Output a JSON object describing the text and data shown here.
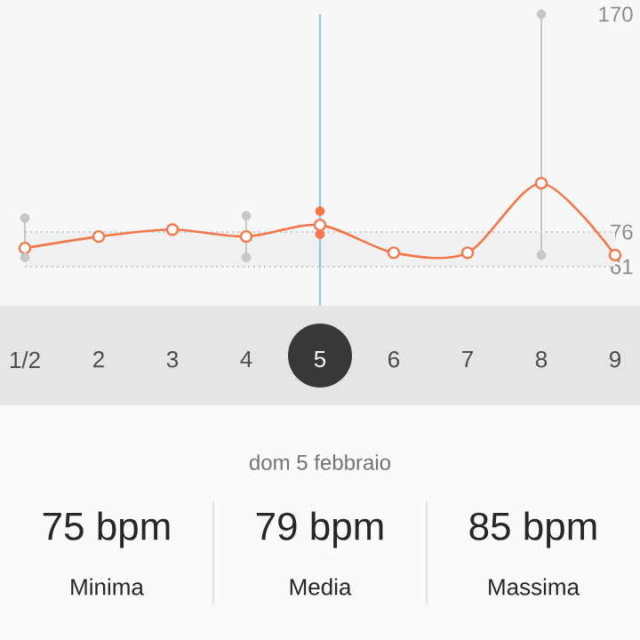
{
  "chart_data": {
    "type": "line",
    "categories": [
      "1/2",
      "2",
      "3",
      "4",
      "5",
      "6",
      "7",
      "8",
      "9"
    ],
    "series": [
      {
        "color": "#f4774a",
        "values": [
          69,
          74,
          77,
          74,
          79,
          67,
          67,
          97,
          66
        ]
      },
      {
        "type": "scatter",
        "color": "#c7c7c7",
        "colors": [
          "#c7c7c7",
          "#c7c7c7",
          "#c7c7c7",
          "#c7c7c7",
          "#f4774a",
          "#c7c7c7",
          "#c7c7c7",
          "#c7c7c7",
          "#c7c7c7"
        ],
        "values": [
          82,
          null,
          null,
          83,
          85,
          null,
          null,
          170,
          null
        ]
      },
      {
        "type": "scatter",
        "color": "#c7c7c7",
        "colors": [
          "#c7c7c7",
          "#c7c7c7",
          "#c7c7c7",
          "#c7c7c7",
          "#f4774a",
          "#c7c7c7",
          "#c7c7c7",
          "#c7c7c7",
          "#c7c7c7"
        ],
        "values": [
          65,
          null,
          null,
          65,
          75,
          null,
          null,
          66,
          null
        ]
      }
    ],
    "ylim": [
      61,
      170
    ],
    "yticks": [
      61,
      76,
      170
    ],
    "marker": "circle",
    "line_style": "solid",
    "grid": false,
    "ref_lines": [
      {
        "axis": "y",
        "value": 76,
        "color": "#c8c8c8",
        "line_style": "dotted"
      },
      {
        "axis": "y",
        "value": 61,
        "color": "#c8c8c8",
        "line_style": "dotted"
      },
      {
        "axis": "x",
        "value": "5",
        "color": "#8ecfd3",
        "line_style": "solid"
      }
    ],
    "bands": [
      {
        "axis": "y",
        "from": 61,
        "to": 76,
        "color": "#f1f1f1"
      }
    ],
    "annotations": [
      "dom 5 febbraio",
      "75 bpm",
      "79 bpm",
      "85 bpm",
      "Minima",
      "Media",
      "Massima"
    ]
  }
}
